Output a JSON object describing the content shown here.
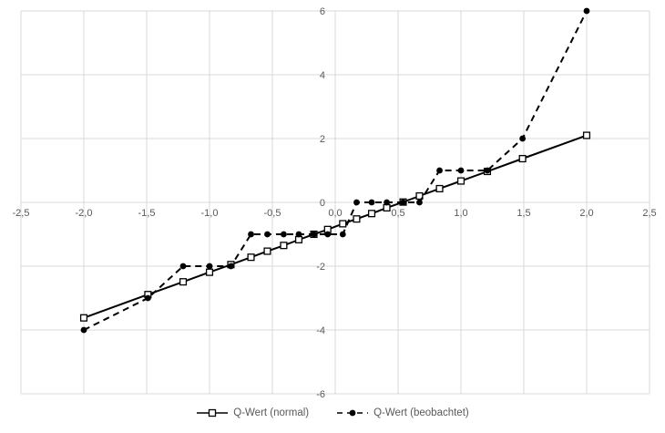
{
  "chart_data": {
    "type": "line",
    "title": "",
    "xlabel": "",
    "ylabel": "",
    "xlim": [
      -2.5,
      2.5
    ],
    "ylim": [
      -6,
      6
    ],
    "grid": true,
    "legend_position": "bottom",
    "x": [
      -2.0,
      -1.49,
      -1.21,
      -1.0,
      -0.83,
      -0.67,
      -0.54,
      -0.41,
      -0.29,
      -0.17,
      -0.06,
      0.06,
      0.17,
      0.29,
      0.41,
      0.54,
      0.67,
      0.83,
      1.0,
      1.21,
      1.49,
      2.0
    ],
    "series": [
      {
        "name": "Q-Wert (normal)",
        "line": "solid",
        "marker": "open-square",
        "values": [
          -3.62,
          -2.89,
          -2.49,
          -2.19,
          -1.95,
          -1.72,
          -1.53,
          -1.35,
          -1.17,
          -1.0,
          -0.85,
          -0.67,
          -0.52,
          -0.35,
          -0.17,
          0.01,
          0.2,
          0.43,
          0.67,
          0.97,
          1.37,
          2.1
        ]
      },
      {
        "name": "Q-Wert (beobachtet)",
        "line": "dashed",
        "marker": "filled-circle",
        "values": [
          -4,
          -3,
          -2,
          -2,
          -2,
          -1,
          -1,
          -1,
          -1,
          -1,
          -1,
          -1,
          0,
          0,
          0,
          0,
          0,
          1,
          1,
          1,
          2,
          6
        ]
      }
    ],
    "x_ticks": [
      {
        "v": -2.5,
        "label": "-2,5"
      },
      {
        "v": -2.0,
        "label": "-2,0"
      },
      {
        "v": -1.5,
        "label": "-1,5"
      },
      {
        "v": -1.0,
        "label": "-1,0"
      },
      {
        "v": -0.5,
        "label": "-0,5"
      },
      {
        "v": 0.0,
        "label": "0,0"
      },
      {
        "v": 0.5,
        "label": "0,5"
      },
      {
        "v": 1.0,
        "label": "1,0"
      },
      {
        "v": 1.5,
        "label": "1,5"
      },
      {
        "v": 2.0,
        "label": "2,0"
      },
      {
        "v": 2.5,
        "label": "2,5"
      }
    ],
    "y_ticks": [
      {
        "v": 6,
        "label": "6"
      },
      {
        "v": 4,
        "label": "4"
      },
      {
        "v": 2,
        "label": "2"
      },
      {
        "v": 0,
        "label": "0"
      },
      {
        "v": -2,
        "label": "-2"
      },
      {
        "v": -4,
        "label": "-4"
      },
      {
        "v": -6,
        "label": "-6"
      }
    ],
    "colors": {
      "series": "#000000",
      "grid": "#d9d9d9",
      "tick_text": "#595959",
      "background": "#ffffff"
    }
  }
}
